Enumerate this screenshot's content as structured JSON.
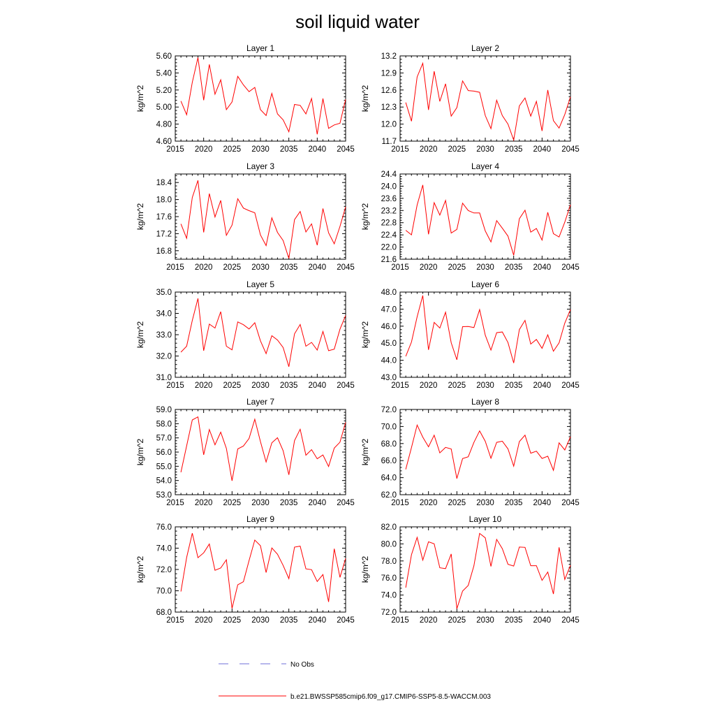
{
  "title": "soil liquid water",
  "legend": [
    {
      "label": "No Obs",
      "color": "#6f6fd8",
      "style": "dashed"
    },
    {
      "label": "b.e21.BWSSP585cmip6.f09_g17.CMIP6-SSP5-8.5-WACCM.003",
      "color": "#ff0000",
      "style": "solid"
    }
  ],
  "chart_data": [
    {
      "type": "line",
      "title": "Layer 1",
      "ylabel": "kg/m^2",
      "xlim": [
        2015,
        2045
      ],
      "xticks": [
        2015,
        2020,
        2025,
        2030,
        2035,
        2040,
        2045
      ],
      "ylim": [
        4.6,
        5.6
      ],
      "yticks": [
        "4.60",
        "4.80",
        "5.00",
        "5.20",
        "5.40",
        "5.60"
      ],
      "series": [
        {
          "color": "#ff0000",
          "x": [
            2016,
            2017,
            2018,
            2019,
            2020,
            2021,
            2022,
            2023,
            2024,
            2025,
            2026,
            2027,
            2028,
            2029,
            2030,
            2031,
            2032,
            2033,
            2034,
            2035,
            2036,
            2037,
            2038,
            2039,
            2040,
            2041,
            2042,
            2043,
            2044,
            2045
          ],
          "values": [
            5.07,
            4.91,
            5.29,
            5.58,
            5.08,
            5.5,
            5.15,
            5.32,
            4.97,
            5.06,
            5.36,
            5.26,
            5.18,
            5.23,
            4.97,
            4.9,
            5.16,
            4.92,
            4.85,
            4.71,
            5.03,
            5.02,
            4.92,
            5.1,
            4.68,
            5.1,
            4.75,
            4.79,
            4.81,
            5.09
          ]
        }
      ]
    },
    {
      "type": "line",
      "title": "Layer 2",
      "ylabel": "kg/m^2",
      "xlim": [
        2015,
        2045
      ],
      "xticks": [
        2015,
        2020,
        2025,
        2030,
        2035,
        2040,
        2045
      ],
      "ylim": [
        11.7,
        13.2
      ],
      "yticks": [
        "11.7",
        "12.0",
        "12.3",
        "12.6",
        "12.9",
        "13.2"
      ],
      "series": [
        {
          "color": "#ff0000",
          "x": [
            2016,
            2017,
            2018,
            2019,
            2020,
            2021,
            2022,
            2023,
            2024,
            2025,
            2026,
            2027,
            2028,
            2029,
            2030,
            2031,
            2032,
            2033,
            2034,
            2035,
            2036,
            2037,
            2038,
            2039,
            2040,
            2041,
            2042,
            2043,
            2044,
            2045
          ],
          "values": [
            12.38,
            12.05,
            12.83,
            13.07,
            12.25,
            12.93,
            12.4,
            12.71,
            12.14,
            12.29,
            12.76,
            12.59,
            12.58,
            12.56,
            12.15,
            11.92,
            12.42,
            12.15,
            12.0,
            11.72,
            12.32,
            12.46,
            12.14,
            12.4,
            11.88,
            12.6,
            12.06,
            11.93,
            12.17,
            12.48
          ]
        }
      ]
    },
    {
      "type": "line",
      "title": "Layer 3",
      "ylabel": "kg/m^2",
      "xlim": [
        2015,
        2045
      ],
      "xticks": [
        2015,
        2020,
        2025,
        2030,
        2035,
        2040,
        2045
      ],
      "ylim": [
        16.6,
        18.6
      ],
      "yticks": [
        "16.8",
        "17.2",
        "17.6",
        "18.0",
        "18.4"
      ],
      "series": [
        {
          "color": "#ff0000",
          "x": [
            2016,
            2017,
            2018,
            2019,
            2020,
            2021,
            2022,
            2023,
            2024,
            2025,
            2026,
            2027,
            2028,
            2029,
            2030,
            2031,
            2032,
            2033,
            2034,
            2035,
            2036,
            2037,
            2038,
            2039,
            2040,
            2041,
            2042,
            2043,
            2044,
            2045
          ],
          "values": [
            17.43,
            17.09,
            18.05,
            18.45,
            17.23,
            18.14,
            17.59,
            17.98,
            17.16,
            17.4,
            18.02,
            17.8,
            17.74,
            17.69,
            17.17,
            16.92,
            17.57,
            17.23,
            17.04,
            16.62,
            17.53,
            17.72,
            17.24,
            17.43,
            16.93,
            17.79,
            17.22,
            16.96,
            17.37,
            17.83
          ]
        }
      ]
    },
    {
      "type": "line",
      "title": "Layer 4",
      "ylabel": "kg/m^2",
      "xlim": [
        2015,
        2045
      ],
      "xticks": [
        2015,
        2020,
        2025,
        2030,
        2035,
        2040,
        2045
      ],
      "ylim": [
        21.6,
        24.4
      ],
      "yticks": [
        "21.6",
        "22.0",
        "22.4",
        "22.8",
        "23.2",
        "23.6",
        "24.0",
        "24.4"
      ],
      "series": [
        {
          "color": "#ff0000",
          "x": [
            2016,
            2017,
            2018,
            2019,
            2020,
            2021,
            2022,
            2023,
            2024,
            2025,
            2026,
            2027,
            2028,
            2029,
            2030,
            2031,
            2032,
            2033,
            2034,
            2035,
            2036,
            2037,
            2038,
            2039,
            2040,
            2041,
            2042,
            2043,
            2044,
            2045
          ],
          "values": [
            22.55,
            22.4,
            23.38,
            24.04,
            22.42,
            23.46,
            23.05,
            23.53,
            22.46,
            22.58,
            23.44,
            23.2,
            23.12,
            23.12,
            22.53,
            22.17,
            22.87,
            22.62,
            22.36,
            21.73,
            22.93,
            23.21,
            22.49,
            22.61,
            22.23,
            23.14,
            22.44,
            22.33,
            22.82,
            23.39
          ]
        }
      ]
    },
    {
      "type": "line",
      "title": "Layer 5",
      "ylabel": "kg/m^2",
      "xlim": [
        2015,
        2045
      ],
      "xticks": [
        2015,
        2020,
        2025,
        2030,
        2035,
        2040,
        2045
      ],
      "ylim": [
        31.0,
        35.0
      ],
      "yticks": [
        "31.0",
        "32.0",
        "33.0",
        "34.0",
        "35.0"
      ],
      "series": [
        {
          "color": "#ff0000",
          "x": [
            2016,
            2017,
            2018,
            2019,
            2020,
            2021,
            2022,
            2023,
            2024,
            2025,
            2026,
            2027,
            2028,
            2029,
            2030,
            2031,
            2032,
            2033,
            2034,
            2035,
            2036,
            2037,
            2038,
            2039,
            2040,
            2041,
            2042,
            2043,
            2044,
            2045
          ],
          "values": [
            32.18,
            32.46,
            33.67,
            34.7,
            32.25,
            33.5,
            33.31,
            34.08,
            32.46,
            32.29,
            33.6,
            33.47,
            33.27,
            33.56,
            32.71,
            32.11,
            32.95,
            32.75,
            32.4,
            31.5,
            33.04,
            33.48,
            32.46,
            32.64,
            32.28,
            33.15,
            32.25,
            32.32,
            33.26,
            33.9
          ]
        }
      ]
    },
    {
      "type": "line",
      "title": "Layer 6",
      "ylabel": "kg/m^2",
      "xlim": [
        2015,
        2045
      ],
      "xticks": [
        2015,
        2020,
        2025,
        2030,
        2035,
        2040,
        2045
      ],
      "ylim": [
        43.0,
        48.0
      ],
      "yticks": [
        "43.0",
        "44.0",
        "45.0",
        "46.0",
        "47.0",
        "48.0"
      ],
      "series": [
        {
          "color": "#ff0000",
          "x": [
            2016,
            2017,
            2018,
            2019,
            2020,
            2021,
            2022,
            2023,
            2024,
            2025,
            2026,
            2027,
            2028,
            2029,
            2030,
            2031,
            2032,
            2033,
            2034,
            2035,
            2036,
            2037,
            2038,
            2039,
            2040,
            2041,
            2042,
            2043,
            2044,
            2045
          ],
          "values": [
            44.23,
            45.07,
            46.55,
            47.8,
            44.61,
            46.22,
            45.89,
            46.82,
            45.03,
            44.03,
            45.97,
            45.98,
            45.92,
            46.97,
            45.47,
            44.6,
            45.62,
            45.66,
            45.04,
            43.84,
            45.8,
            46.34,
            44.95,
            45.22,
            44.7,
            45.49,
            44.53,
            45.02,
            46.18,
            46.97
          ]
        }
      ]
    },
    {
      "type": "line",
      "title": "Layer 7",
      "ylabel": "kg/m^2",
      "xlim": [
        2015,
        2045
      ],
      "xticks": [
        2015,
        2020,
        2025,
        2030,
        2035,
        2040,
        2045
      ],
      "ylim": [
        53.0,
        59.0
      ],
      "yticks": [
        "53.0",
        "54.0",
        "55.0",
        "56.0",
        "57.0",
        "58.0",
        "59.0"
      ],
      "series": [
        {
          "color": "#ff0000",
          "x": [
            2016,
            2017,
            2018,
            2019,
            2020,
            2021,
            2022,
            2023,
            2024,
            2025,
            2026,
            2027,
            2028,
            2029,
            2030,
            2031,
            2032,
            2033,
            2034,
            2035,
            2036,
            2037,
            2038,
            2039,
            2040,
            2041,
            2042,
            2043,
            2044,
            2045
          ],
          "values": [
            54.58,
            56.44,
            58.26,
            58.48,
            55.81,
            57.59,
            56.51,
            57.4,
            56.26,
            53.98,
            56.22,
            56.43,
            56.96,
            58.31,
            56.74,
            55.3,
            56.65,
            57.01,
            56.1,
            54.4,
            56.81,
            57.61,
            55.78,
            56.17,
            55.53,
            55.8,
            54.98,
            56.28,
            56.7,
            58.09
          ]
        }
      ]
    },
    {
      "type": "line",
      "title": "Layer 8",
      "ylabel": "kg/m^2",
      "xlim": [
        2015,
        2045
      ],
      "xticks": [
        2015,
        2020,
        2025,
        2030,
        2035,
        2040,
        2045
      ],
      "ylim": [
        62.0,
        72.0
      ],
      "yticks": [
        "62.0",
        "64.0",
        "66.0",
        "68.0",
        "70.0",
        "72.0"
      ],
      "series": [
        {
          "color": "#ff0000",
          "x": [
            2016,
            2017,
            2018,
            2019,
            2020,
            2021,
            2022,
            2023,
            2024,
            2025,
            2026,
            2027,
            2028,
            2029,
            2030,
            2031,
            2032,
            2033,
            2034,
            2035,
            2036,
            2037,
            2038,
            2039,
            2040,
            2041,
            2042,
            2043,
            2044,
            2045
          ],
          "values": [
            64.97,
            67.53,
            70.17,
            68.75,
            67.62,
            68.98,
            66.91,
            67.55,
            67.37,
            63.89,
            66.24,
            66.45,
            68.13,
            69.48,
            68.26,
            66.28,
            68.14,
            68.28,
            67.38,
            65.35,
            68.23,
            68.98,
            66.87,
            67.11,
            66.25,
            66.52,
            64.86,
            68.08,
            67.25,
            68.8
          ]
        }
      ]
    },
    {
      "type": "line",
      "title": "Layer 9",
      "ylabel": "kg/m^2",
      "xlim": [
        2015,
        2045
      ],
      "xticks": [
        2015,
        2020,
        2025,
        2030,
        2035,
        2040,
        2045
      ],
      "ylim": [
        68.0,
        76.0
      ],
      "yticks": [
        "68.0",
        "70.0",
        "72.0",
        "74.0",
        "76.0"
      ],
      "series": [
        {
          "color": "#ff0000",
          "x": [
            2016,
            2017,
            2018,
            2019,
            2020,
            2021,
            2022,
            2023,
            2024,
            2025,
            2026,
            2027,
            2028,
            2029,
            2030,
            2031,
            2032,
            2033,
            2034,
            2035,
            2036,
            2037,
            2038,
            2039,
            2040,
            2041,
            2042,
            2043,
            2044,
            2045
          ],
          "values": [
            69.93,
            73.12,
            75.4,
            73.11,
            73.56,
            74.39,
            71.92,
            72.14,
            72.91,
            68.35,
            70.56,
            70.85,
            72.83,
            74.76,
            74.23,
            71.71,
            74.02,
            73.43,
            72.38,
            71.14,
            74.1,
            74.19,
            72.06,
            71.98,
            70.87,
            71.52,
            68.96,
            73.95,
            71.26,
            73.04
          ]
        }
      ]
    },
    {
      "type": "line",
      "title": "Layer 10",
      "ylabel": "kg/m^2",
      "xlim": [
        2015,
        2045
      ],
      "xticks": [
        2015,
        2020,
        2025,
        2030,
        2035,
        2040,
        2045
      ],
      "ylim": [
        72.0,
        82.0
      ],
      "yticks": [
        "72.0",
        "74.0",
        "76.0",
        "78.0",
        "80.0",
        "82.0"
      ],
      "series": [
        {
          "color": "#ff0000",
          "x": [
            2016,
            2017,
            2018,
            2019,
            2020,
            2021,
            2022,
            2023,
            2024,
            2025,
            2026,
            2027,
            2028,
            2029,
            2030,
            2031,
            2032,
            2033,
            2034,
            2035,
            2036,
            2037,
            2038,
            2039,
            2040,
            2041,
            2042,
            2043,
            2044,
            2045
          ],
          "values": [
            74.87,
            78.73,
            80.76,
            78.1,
            80.25,
            80.01,
            77.2,
            77.1,
            78.82,
            72.39,
            74.47,
            75.13,
            77.43,
            81.23,
            80.71,
            77.36,
            80.53,
            79.44,
            77.61,
            77.4,
            79.63,
            79.6,
            77.44,
            77.44,
            75.72,
            76.7,
            74.12,
            79.6,
            75.83,
            77.5
          ]
        }
      ]
    }
  ]
}
